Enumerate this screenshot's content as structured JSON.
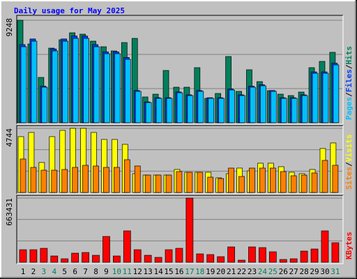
{
  "title": "Daily usage for May 2025",
  "categories": [
    "1",
    "2",
    "3",
    "4",
    "5",
    "6",
    "7",
    "8",
    "9",
    "10",
    "11",
    "12",
    "13",
    "14",
    "15",
    "16",
    "17",
    "18",
    "19",
    "20",
    "21",
    "22",
    "23",
    "24",
    "25",
    "26",
    "27",
    "28",
    "29",
    "30",
    "31"
  ],
  "category_colors": [
    "#000000",
    "#000000",
    "#00805c",
    "#00805c",
    "#000000",
    "#000000",
    "#000000",
    "#000000",
    "#000000",
    "#00805c",
    "#00805c",
    "#000000",
    "#000000",
    "#000000",
    "#000000",
    "#000000",
    "#00805c",
    "#00805c",
    "#000000",
    "#000000",
    "#000000",
    "#000000",
    "#000000",
    "#00805c",
    "#00805c",
    "#000000",
    "#000000",
    "#000000",
    "#000000",
    "#000000",
    "#00805c"
  ],
  "legend_separator": "/",
  "chart_data": [
    {
      "type": "bar",
      "ylim": [
        0,
        9248
      ],
      "yticks": [
        9248
      ],
      "series": [
        {
          "name": "Hits",
          "color": "#00805c",
          "values": [
            9248,
            7108,
            4089,
            6731,
            7486,
            8115,
            7989,
            7360,
            6857,
            6480,
            7234,
            7612,
            2327,
            2579,
            4718,
            3208,
            3208,
            4970,
            2202,
            2642,
            5976,
            2831,
            4781,
            3711,
            2894,
            2579,
            2453,
            2768,
            4970,
            5536,
            6353
          ]
        },
        {
          "name": "Files",
          "color": "#0040ff",
          "values": [
            7050,
            7560,
            3300,
            6660,
            7560,
            7820,
            7820,
            7050,
            6400,
            6400,
            5890,
            2910,
            1880,
            2260,
            2260,
            2780,
            2520,
            2910,
            2260,
            2260,
            3040,
            2520,
            3300,
            3430,
            2910,
            2260,
            2260,
            2520,
            4590,
            4590,
            5370
          ]
        },
        {
          "name": "Pages",
          "color": "#00c0ff",
          "values": [
            6857,
            7360,
            3208,
            6480,
            7360,
            7612,
            7612,
            6857,
            6228,
            6228,
            5724,
            2831,
            1824,
            2202,
            2202,
            2705,
            2453,
            2831,
            2202,
            2202,
            2957,
            2453,
            3208,
            3334,
            2831,
            2202,
            2202,
            2453,
            4466,
            4466,
            5221
          ]
        }
      ]
    },
    {
      "type": "bar",
      "ylim": [
        0,
        4744
      ],
      "yticks": [
        4744
      ],
      "series": [
        {
          "name": "Visits",
          "color": "#ffff00",
          "values": [
            4128,
            4438,
            2219,
            4128,
            4592,
            4744,
            4744,
            4438,
            3922,
            3922,
            3560,
            1393,
            1290,
            1290,
            1290,
            1703,
            1496,
            1496,
            1496,
            1084,
            1393,
            1806,
            1600,
            2167,
            2167,
            1909,
            1496,
            1393,
            1703,
            3251,
            3664
          ]
        },
        {
          "name": "Sites",
          "color": "#ff8000",
          "values": [
            2477,
            1858,
            1651,
            1651,
            1703,
            1858,
            2012,
            1961,
            1858,
            1858,
            2425,
            1961,
            1290,
            1290,
            1290,
            1548,
            1496,
            1496,
            1135,
            1032,
            1806,
            1187,
            1806,
            1806,
            1806,
            1548,
            1238,
            1290,
            1445,
            2374,
            2012
          ]
        }
      ]
    },
    {
      "type": "bar",
      "ylim": [
        0,
        663431
      ],
      "yticks": [
        663431
      ],
      "series": [
        {
          "name": "KBytes",
          "color": "#ff0000",
          "values": [
            129798,
            129798,
            144220,
            64899,
            36055,
            93743,
            100954,
            72110,
            266807,
            64899,
            324495,
            129798,
            72110,
            50477,
            129798,
            144220,
            663431,
            86532,
            79321,
            57688,
            158642,
            21633,
            158642,
            151431,
            108165,
            28844,
            36055,
            115376,
            137009,
            324495,
            201908
          ]
        }
      ]
    }
  ]
}
